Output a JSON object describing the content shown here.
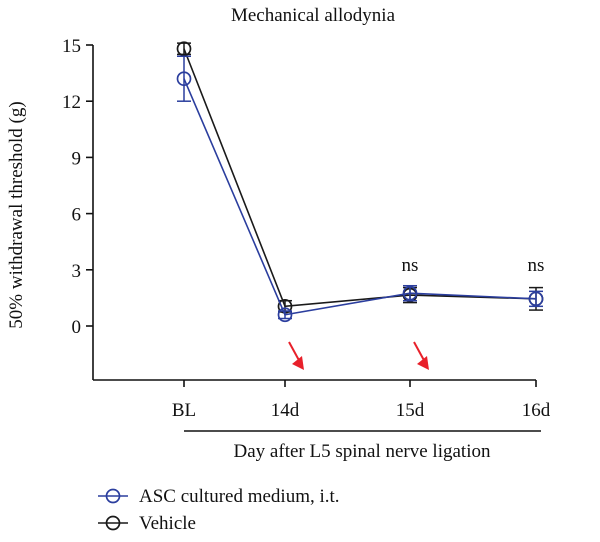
{
  "chart_data": {
    "type": "line",
    "title": "Mechanical allodynia",
    "ylabel": "50% withdrawal threshold (g)",
    "xlabel": "Day after L5 spinal nerve ligation",
    "categories": [
      "BL",
      "14d",
      "15d",
      "16d"
    ],
    "ylim": [
      0,
      15
    ],
    "yticks": [
      "0",
      "3",
      "6",
      "9",
      "12",
      "15"
    ],
    "series": [
      {
        "name": "ASC cultured medium, i.t.",
        "color": "#2b3e9e",
        "values": [
          13.2,
          0.6,
          1.75,
          1.45
        ],
        "err": [
          1.2,
          0.2,
          0.4,
          0.4
        ]
      },
      {
        "name": "Vehicle",
        "color": "#1a1a1a",
        "values": [
          14.8,
          1.05,
          1.65,
          1.45
        ],
        "err": [
          0.3,
          0.3,
          0.4,
          0.6
        ]
      }
    ],
    "annotations": [
      {
        "category": "15d",
        "text": "ns"
      },
      {
        "category": "16d",
        "text": "ns"
      }
    ],
    "arrows": [
      {
        "category": "14d",
        "color": "#e8202a"
      },
      {
        "category": "15d",
        "color": "#e8202a"
      }
    ],
    "grid": false,
    "legend_position": "bottom-left"
  }
}
